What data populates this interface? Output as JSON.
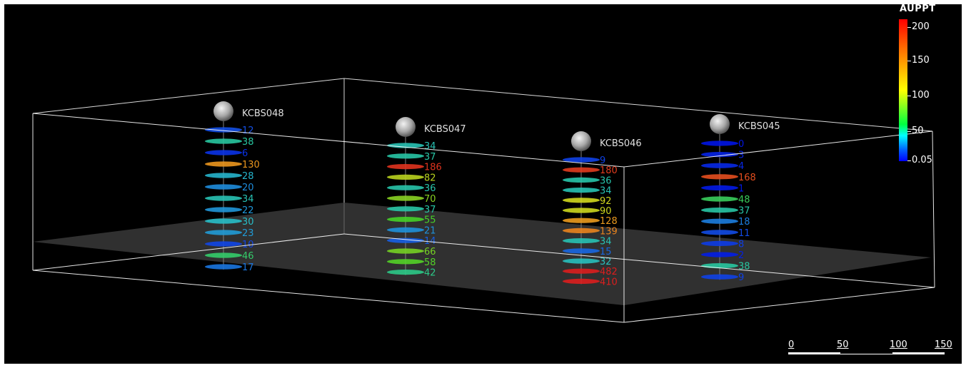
{
  "legend": {
    "title": "AUPPT",
    "ticks": [
      "200",
      "150",
      "100",
      "50",
      "0.05"
    ]
  },
  "scalebar": {
    "labels": [
      "0",
      "50",
      "100",
      "150"
    ]
  },
  "colors": {
    "background": "#000000",
    "box": "#ffffff",
    "plane": "#3a3a3a",
    "collar": "#c8c8c8"
  },
  "drillholes": [
    {
      "name": "KCBS048",
      "samples": [
        12,
        38,
        6,
        130,
        28,
        20,
        34,
        22,
        30,
        23,
        10,
        46,
        17
      ]
    },
    {
      "name": "KCBS047",
      "samples": [
        34,
        37,
        186,
        82,
        36,
        70,
        37,
        55,
        21,
        14,
        66,
        58,
        42
      ]
    },
    {
      "name": "KCBS046",
      "samples": [
        9,
        180,
        36,
        34,
        92,
        90,
        128,
        139,
        34,
        15,
        32,
        482,
        410
      ]
    },
    {
      "name": "KCBS045",
      "samples": [
        0,
        3,
        4,
        168,
        1,
        48,
        37,
        18,
        11,
        8,
        2,
        38,
        9
      ]
    }
  ]
}
